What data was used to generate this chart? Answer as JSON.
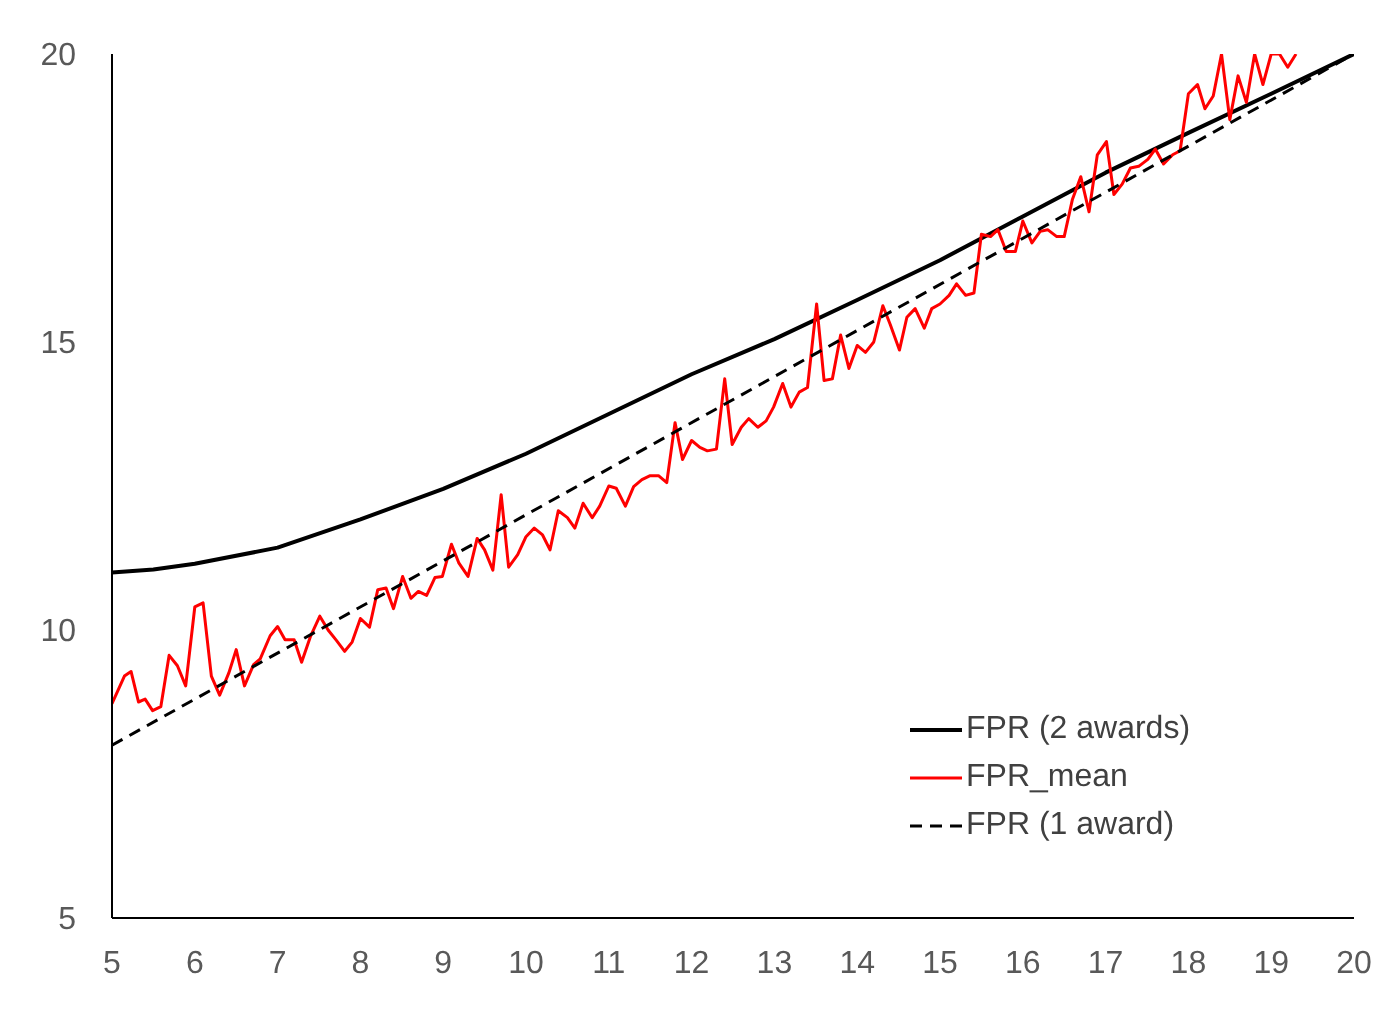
{
  "chart_data": {
    "type": "line",
    "xlim": [
      5,
      20
    ],
    "xticks": [
      5,
      6,
      7,
      8,
      9,
      10,
      11,
      12,
      13,
      14,
      15,
      16,
      17,
      18,
      19,
      20
    ],
    "ylim": [
      5,
      20
    ],
    "yticks": [
      5,
      10,
      15,
      20
    ],
    "grid": false,
    "legend": "bottom right",
    "marker": "none",
    "series": [
      {
        "name": "FPR (2 awards)",
        "color": "#000000",
        "line_style": "solid",
        "x": [
          5,
          5.5,
          6,
          7,
          8,
          9,
          10,
          11,
          12,
          13,
          14,
          15,
          16,
          17,
          18,
          19,
          20
        ],
        "values": [
          11.0,
          11.05,
          11.15,
          11.43,
          11.92,
          12.45,
          13.06,
          13.75,
          14.44,
          15.05,
          15.73,
          16.42,
          17.18,
          17.94,
          18.63,
          19.31,
          20.0
        ]
      },
      {
        "name": "FPR_mean",
        "color": "#ff0000",
        "line_style": "solid",
        "x": [
          5.0,
          5.15,
          5.23,
          5.32,
          5.4,
          5.49,
          5.59,
          5.69,
          5.79,
          5.89,
          6.0,
          6.1,
          6.2,
          6.3,
          6.41,
          6.5,
          6.6,
          6.71,
          6.79,
          6.91,
          7.0,
          7.09,
          7.2,
          7.29,
          7.4,
          7.51,
          7.61,
          7.71,
          7.81,
          7.9,
          8.0,
          8.11,
          8.21,
          8.31,
          8.4,
          8.51,
          8.61,
          8.7,
          8.8,
          8.9,
          8.99,
          9.1,
          9.19,
          9.3,
          9.41,
          9.5,
          9.6,
          9.7,
          9.79,
          9.9,
          10.0,
          10.1,
          10.2,
          10.29,
          10.39,
          10.5,
          10.59,
          10.69,
          10.8,
          10.89,
          11.0,
          11.09,
          11.2,
          11.3,
          11.4,
          11.5,
          11.6,
          11.7,
          11.8,
          11.89,
          12.0,
          12.1,
          12.19,
          12.3,
          12.4,
          12.49,
          12.6,
          12.69,
          12.8,
          12.9,
          12.99,
          13.1,
          13.2,
          13.3,
          13.4,
          13.51,
          13.6,
          13.7,
          13.8,
          13.9,
          14.0,
          14.1,
          14.2,
          14.31,
          14.4,
          14.51,
          14.6,
          14.7,
          14.81,
          14.9,
          15.0,
          15.11,
          15.2,
          15.31,
          15.41,
          15.5,
          15.61,
          15.7,
          15.8,
          15.91,
          16.0,
          16.11,
          16.21,
          16.3,
          16.41,
          16.5,
          16.6,
          16.7,
          16.8,
          16.9,
          17.01,
          17.1,
          17.2,
          17.3,
          17.4,
          17.51,
          17.6,
          17.7,
          17.81,
          17.9,
          18.0,
          18.11,
          18.2,
          18.3,
          18.4,
          18.5,
          18.6,
          18.7,
          18.8,
          18.9,
          19.0,
          19.1,
          19.2,
          19.3
        ],
        "values": [
          8.72,
          9.2,
          9.28,
          8.75,
          8.8,
          8.6,
          8.67,
          9.56,
          9.38,
          9.03,
          10.4,
          10.47,
          9.2,
          8.87,
          9.25,
          9.66,
          9.03,
          9.4,
          9.5,
          9.9,
          10.06,
          9.83,
          9.83,
          9.44,
          9.9,
          10.24,
          10.0,
          9.82,
          9.63,
          9.79,
          10.2,
          10.05,
          10.7,
          10.73,
          10.37,
          10.93,
          10.55,
          10.67,
          10.6,
          10.91,
          10.93,
          11.49,
          11.16,
          10.93,
          11.59,
          11.39,
          11.04,
          12.35,
          11.09,
          11.31,
          11.62,
          11.77,
          11.65,
          11.39,
          12.07,
          11.95,
          11.77,
          12.2,
          11.95,
          12.15,
          12.5,
          12.46,
          12.15,
          12.49,
          12.61,
          12.68,
          12.68,
          12.56,
          13.6,
          12.96,
          13.29,
          13.17,
          13.11,
          13.14,
          14.36,
          13.22,
          13.52,
          13.67,
          13.52,
          13.63,
          13.87,
          14.28,
          13.87,
          14.13,
          14.21,
          15.66,
          14.33,
          14.36,
          15.12,
          14.54,
          14.94,
          14.82,
          15.0,
          15.63,
          15.3,
          14.86,
          15.43,
          15.58,
          15.24,
          15.58,
          15.66,
          15.81,
          16.01,
          15.81,
          15.85,
          16.87,
          16.83,
          16.95,
          16.57,
          16.57,
          17.1,
          16.72,
          16.92,
          16.95,
          16.83,
          16.83,
          17.48,
          17.87,
          17.26,
          18.25,
          18.48,
          17.56,
          17.74,
          18.02,
          18.05,
          18.17,
          18.35,
          18.09,
          18.25,
          18.32,
          19.31,
          19.47,
          19.05,
          19.27,
          20.0,
          18.86,
          19.62,
          19.16,
          20.0,
          19.47,
          20.0,
          20.0,
          19.77,
          20.0
        ]
      },
      {
        "name": "FPR (1 award)",
        "color": "#000000",
        "line_style": "dashed",
        "x": [
          5,
          20
        ],
        "values": [
          8,
          20
        ]
      }
    ]
  }
}
